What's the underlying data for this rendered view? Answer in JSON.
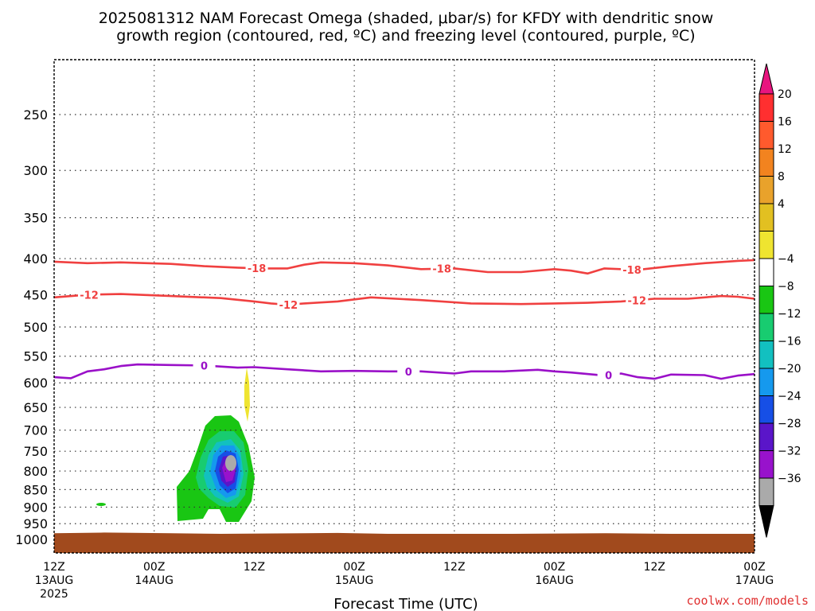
{
  "chart_data": {
    "type": "contour",
    "title_lines": [
      "2025081312 NAM Forecast Omega (shaded, μbar/s) for KFDY with dendritic snow",
      "growth region (contoured, red, ºC) and freezing level (contoured, purple, ºC)"
    ],
    "xlabel": "Forecast Time (UTC)",
    "ylabel": "",
    "x_ticks": [
      {
        "t": 0,
        "lines": [
          "12Z",
          "13AUG",
          "2025"
        ]
      },
      {
        "t": 12,
        "lines": [
          "00Z",
          "14AUG"
        ]
      },
      {
        "t": 24,
        "lines": [
          "12Z"
        ]
      },
      {
        "t": 36,
        "lines": [
          "00Z",
          "15AUG"
        ]
      },
      {
        "t": 48,
        "lines": [
          "12Z"
        ]
      },
      {
        "t": 60,
        "lines": [
          "00Z",
          "16AUG"
        ]
      },
      {
        "t": 72,
        "lines": [
          "12Z"
        ]
      },
      {
        "t": 84,
        "lines": [
          "00Z",
          "17AUG"
        ]
      }
    ],
    "xlim": [
      0,
      84
    ],
    "y_ticks": [
      250,
      300,
      350,
      400,
      450,
      500,
      550,
      600,
      650,
      700,
      750,
      800,
      850,
      900,
      950,
      1000
    ],
    "ylim_hPa": [
      200,
      1030
    ],
    "y_scale": "log-pressure",
    "grid": true,
    "surface_pressure_hPa": [
      [
        0,
        980
      ],
      [
        6,
        978
      ],
      [
        14,
        980
      ],
      [
        20,
        982
      ],
      [
        30,
        980
      ],
      [
        34,
        979
      ],
      [
        40,
        982
      ],
      [
        55,
        982
      ],
      [
        66,
        980
      ],
      [
        74,
        982
      ],
      [
        84,
        982
      ]
    ],
    "red_contours": [
      {
        "level": -18,
        "label": "-18",
        "label_t": [
          24.3,
          46.5,
          69.3
        ],
        "points": [
          [
            0,
            404
          ],
          [
            4,
            406
          ],
          [
            8,
            405
          ],
          [
            14,
            407
          ],
          [
            18,
            410
          ],
          [
            22,
            412
          ],
          [
            25,
            413
          ],
          [
            28,
            413
          ],
          [
            30,
            408
          ],
          [
            32,
            405
          ],
          [
            36,
            406
          ],
          [
            40,
            409
          ],
          [
            44,
            414
          ],
          [
            48,
            413
          ],
          [
            52,
            418
          ],
          [
            56,
            418
          ],
          [
            60,
            414
          ],
          [
            62,
            416
          ],
          [
            64,
            420
          ],
          [
            66,
            413
          ],
          [
            70,
            415
          ],
          [
            74,
            410
          ],
          [
            78,
            406
          ],
          [
            82,
            403
          ],
          [
            84,
            402
          ]
        ]
      },
      {
        "level": -12,
        "label": "-12",
        "label_t": [
          4.2,
          28.1,
          69.9
        ],
        "points": [
          [
            0,
            454
          ],
          [
            4,
            450
          ],
          [
            8,
            449
          ],
          [
            14,
            452
          ],
          [
            20,
            455
          ],
          [
            24,
            460
          ],
          [
            26,
            463
          ],
          [
            28,
            465
          ],
          [
            30,
            463
          ],
          [
            34,
            460
          ],
          [
            38,
            454
          ],
          [
            44,
            458
          ],
          [
            50,
            463
          ],
          [
            56,
            464
          ],
          [
            60,
            463
          ],
          [
            64,
            462
          ],
          [
            68,
            460
          ],
          [
            72,
            456
          ],
          [
            76,
            456
          ],
          [
            80,
            452
          ],
          [
            82,
            453
          ],
          [
            84,
            456
          ]
        ]
      }
    ],
    "purple_contours": [
      {
        "level": 0,
        "label": "0",
        "label_t": [
          18,
          42.5,
          66.5
        ],
        "points": [
          [
            0,
            589
          ],
          [
            2,
            591
          ],
          [
            4,
            578
          ],
          [
            6,
            574
          ],
          [
            8,
            568
          ],
          [
            10,
            565
          ],
          [
            14,
            566
          ],
          [
            18,
            567
          ],
          [
            22,
            571
          ],
          [
            24,
            570
          ],
          [
            28,
            574
          ],
          [
            32,
            578
          ],
          [
            36,
            577
          ],
          [
            40,
            578
          ],
          [
            44,
            578
          ],
          [
            48,
            582
          ],
          [
            50,
            578
          ],
          [
            54,
            578
          ],
          [
            58,
            575
          ],
          [
            60,
            578
          ],
          [
            62,
            580
          ],
          [
            66,
            586
          ],
          [
            68,
            582
          ],
          [
            70,
            589
          ],
          [
            72,
            592
          ],
          [
            74,
            584
          ],
          [
            78,
            585
          ],
          [
            80,
            592
          ],
          [
            82,
            586
          ],
          [
            84,
            583
          ]
        ]
      }
    ],
    "omega_colorbar": {
      "levels": [
        20,
        16,
        12,
        8,
        4,
        -4,
        -8,
        -12,
        -16,
        -20,
        -24,
        -28,
        -32,
        -36
      ],
      "colors": [
        "#ff2f30",
        "#ff5a2d",
        "#f2831f",
        "#e9a22b",
        "#e2c021",
        "#efe430",
        "#ffffff",
        "#19c613",
        "#18cc70",
        "#12c0c0",
        "#1599ee",
        "#164fe6",
        "#5a15c9",
        "#9812cc",
        "#aaaaaa"
      ],
      "under_color": "#000000",
      "over_color": "#e8157f"
    },
    "omega_fields": [
      {
        "level_range": "-8 to -4",
        "color": "#19c613",
        "description_free_shape": true
      },
      {
        "level_range": "4 to 8",
        "color": "#efe430"
      }
    ]
  },
  "credit": "coolwx.com/models",
  "colors": {
    "red_contour": "#f04040",
    "purple_contour": "#9a10c8",
    "surface": "#a14a1d",
    "grid": "#888888"
  }
}
